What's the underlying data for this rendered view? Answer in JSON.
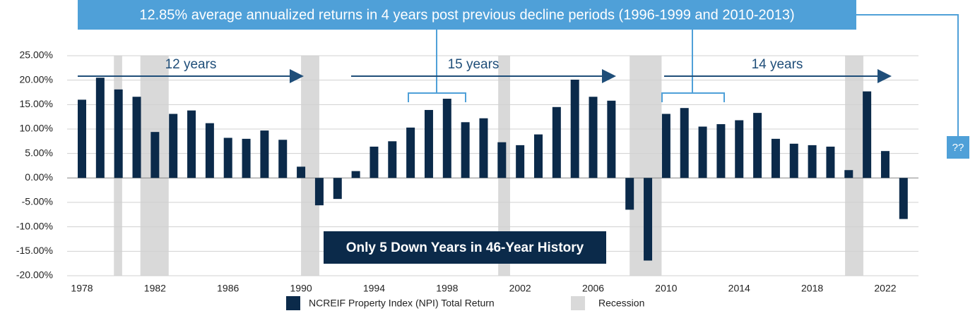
{
  "chart_data": {
    "type": "bar",
    "title": "12.85% average annualized returns in 4 years post previous decline periods (1996-1999 and 2010-2013)",
    "categories": [
      "1978",
      null,
      null,
      null,
      "1982",
      null,
      null,
      null,
      "1986",
      null,
      null,
      null,
      "1990",
      null,
      null,
      null,
      "1994",
      null,
      null,
      null,
      "1998",
      null,
      null,
      null,
      "2002",
      null,
      null,
      null,
      "2006",
      null,
      null,
      null,
      "2010",
      null,
      null,
      null,
      "2014",
      null,
      null,
      null,
      "2018",
      null,
      null,
      null,
      "2022",
      null
    ],
    "series": [
      {
        "name": "NCREIF Property Index (NPI) Total Return",
        "color": "#0b2a4a",
        "values": [
          16.0,
          20.5,
          18.1,
          16.6,
          9.4,
          13.1,
          13.8,
          11.2,
          8.2,
          8.0,
          9.7,
          7.8,
          2.3,
          -5.6,
          -4.3,
          1.4,
          6.4,
          7.5,
          10.3,
          13.9,
          16.2,
          11.4,
          12.2,
          7.3,
          6.7,
          8.9,
          14.5,
          20.1,
          16.6,
          15.8,
          -6.5,
          -16.9,
          13.1,
          14.3,
          10.5,
          11.0,
          11.8,
          13.3,
          8.0,
          7.0,
          6.7,
          6.4,
          1.6,
          17.7,
          5.5,
          -8.4
        ]
      }
    ],
    "recessions": {
      "name": "Recession",
      "color": "#d9d9d9",
      "first_year": 1978,
      "spans": [
        [
          1979.75,
          1980.2
        ],
        [
          1981.2,
          1982.75
        ],
        [
          1990.0,
          1991.0
        ],
        [
          2000.8,
          2001.45
        ],
        [
          2008.0,
          2009.75
        ],
        [
          2019.8,
          2020.8
        ]
      ]
    },
    "ylim": [
      -20,
      25
    ],
    "yticks": [
      {
        "value": -20,
        "label": "-20.00%"
      },
      {
        "value": -15,
        "label": "-15.00%"
      },
      {
        "value": -10,
        "label": "-10.00%"
      },
      {
        "value": -5,
        "label": "-5.00%"
      },
      {
        "value": 0,
        "label": "0.00%"
      },
      {
        "value": 5,
        "label": "5.00%"
      },
      {
        "value": 10,
        "label": "10.00%"
      },
      {
        "value": 15,
        "label": "15.00%"
      },
      {
        "value": 20,
        "label": "20.00%"
      },
      {
        "value": 25,
        "label": "25.00%"
      }
    ],
    "grid": true,
    "annotations": [
      "12 years",
      "15 years",
      "14 years",
      "Only 5 Down Years in 46-Year History",
      "??"
    ]
  }
}
